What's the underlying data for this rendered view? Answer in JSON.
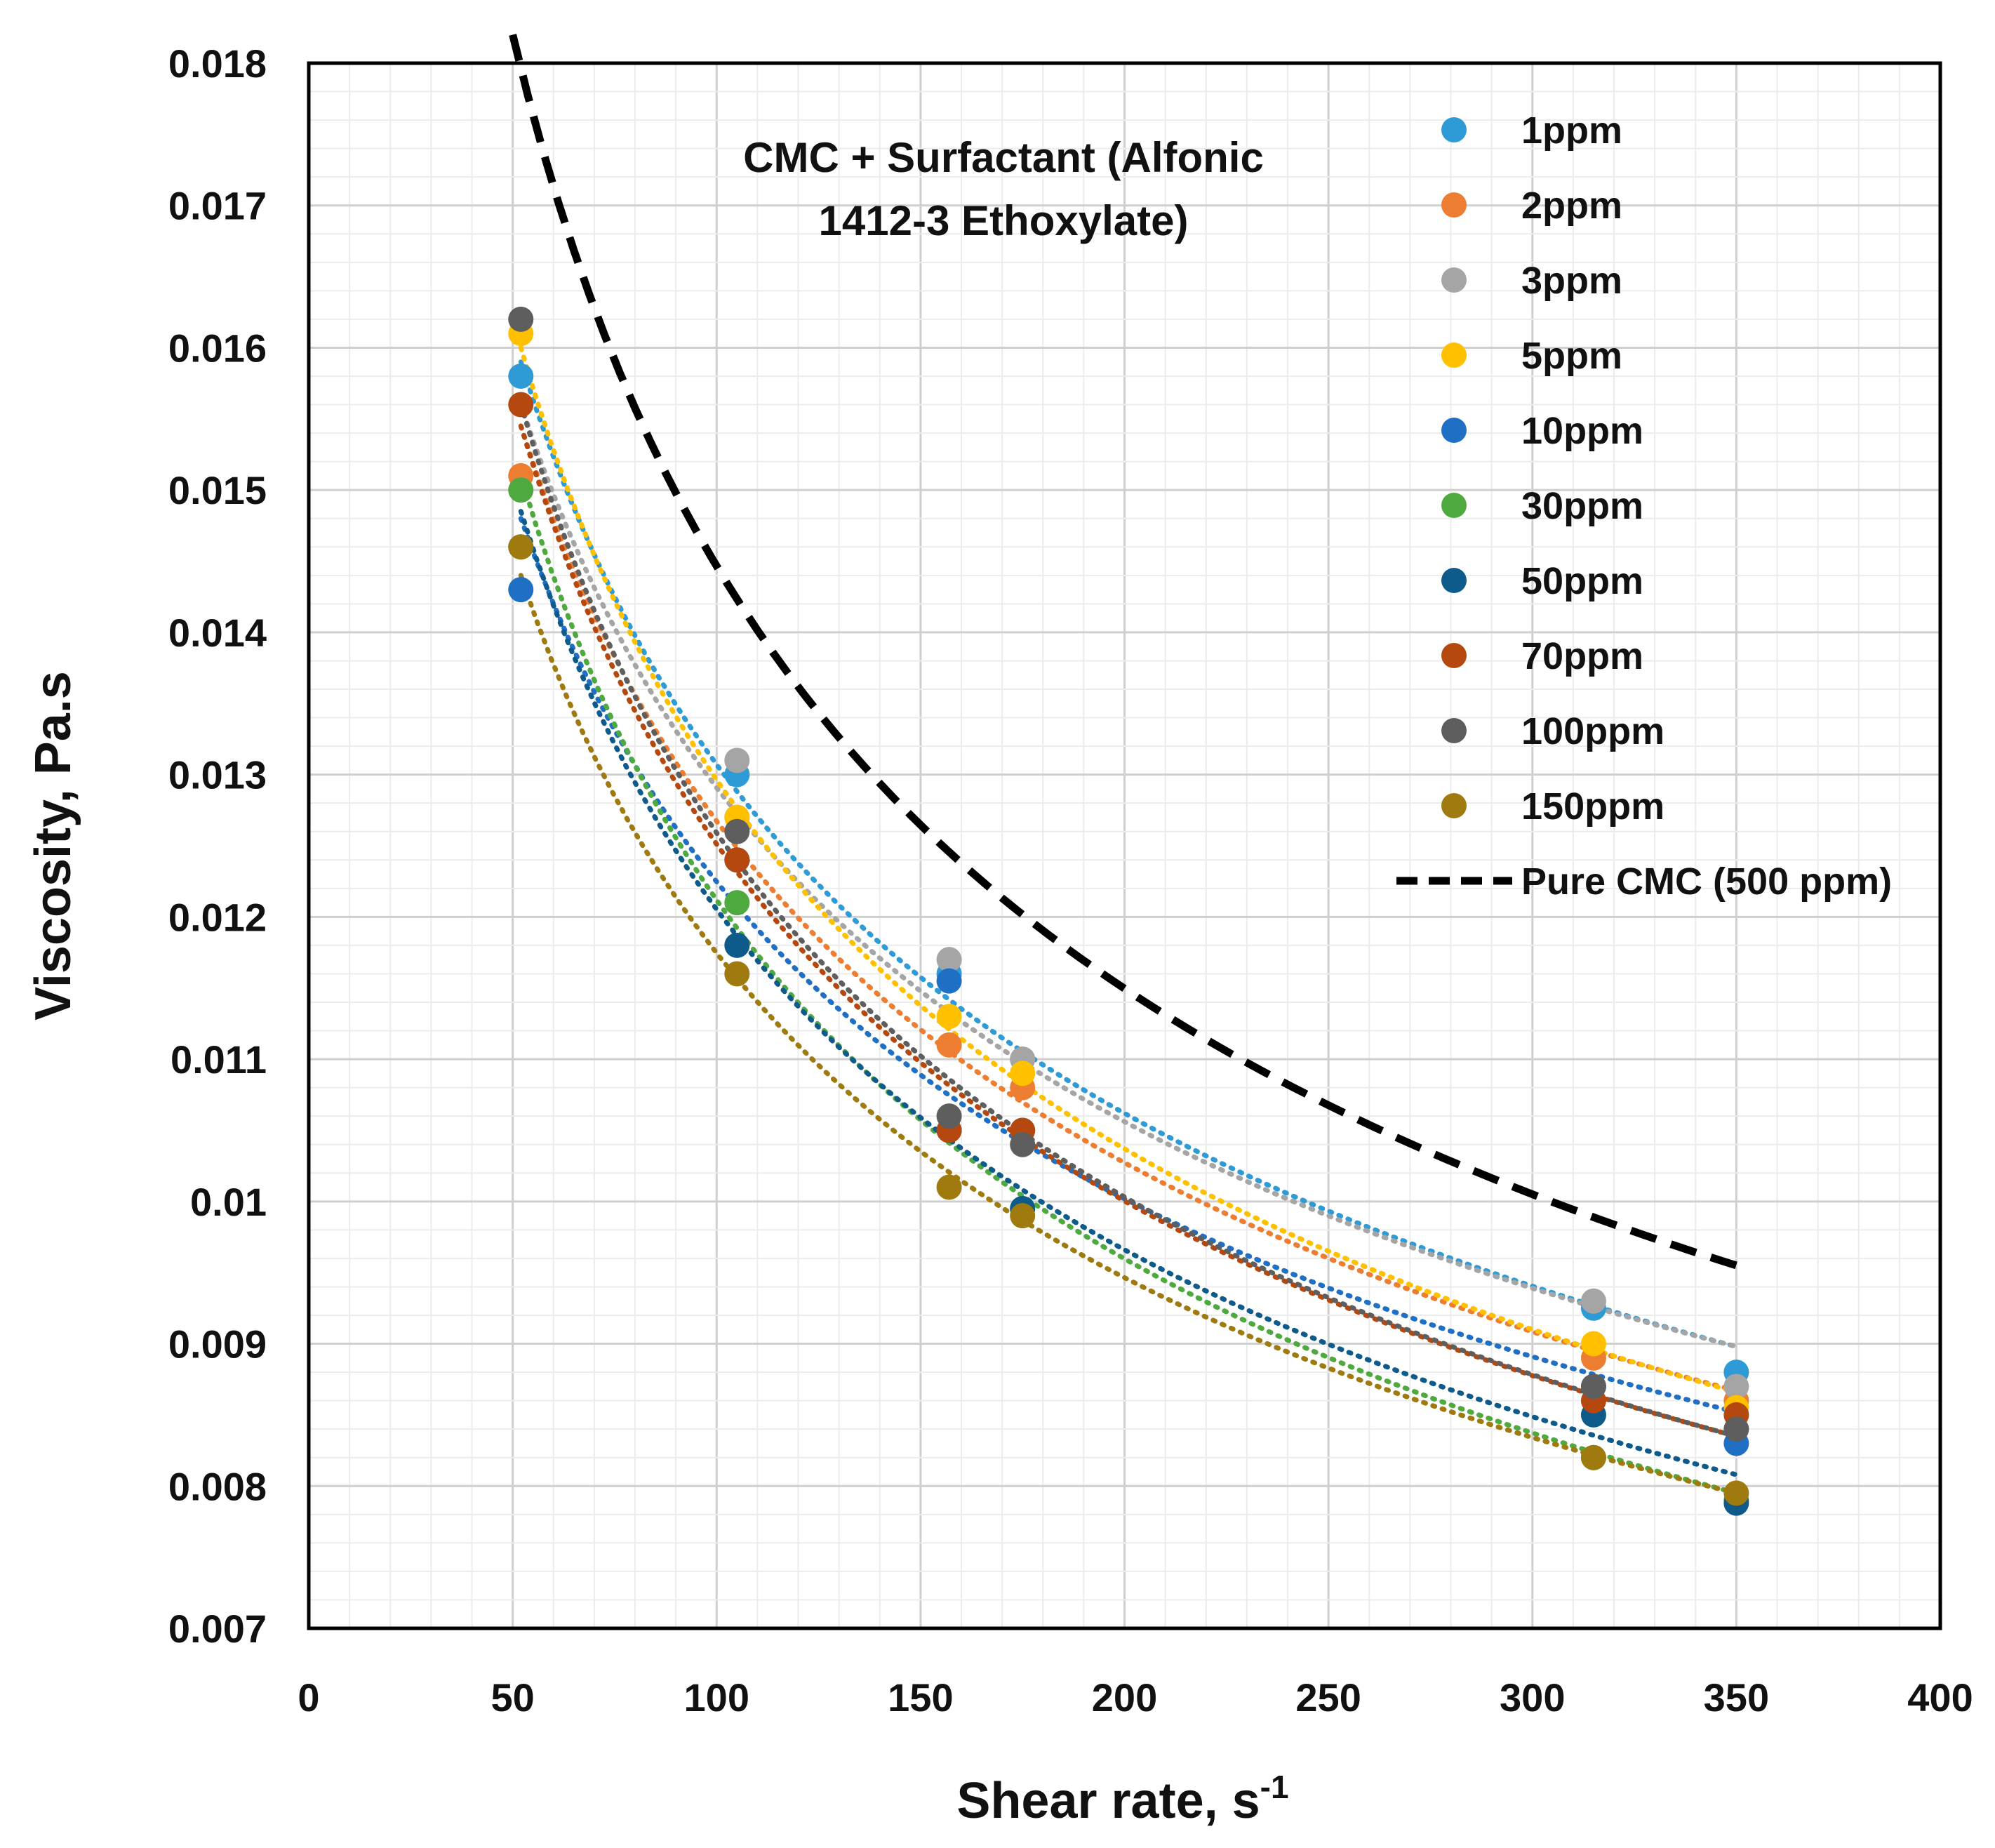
{
  "chart_data": {
    "type": "scatter",
    "title": "",
    "annotation_lines": [
      "CMC + Surfactant (Alfonic",
      "1412-3 Ethoxylate)"
    ],
    "xlabel": "Shear rate, s",
    "xlabel_superscript": "-1",
    "ylabel": "Viscosity, Pa.s",
    "xlim": [
      0,
      400
    ],
    "ylim": [
      0.007,
      0.018
    ],
    "x_ticks": [
      0,
      50,
      100,
      150,
      200,
      250,
      300,
      350,
      400
    ],
    "x_tick_labels": [
      "0",
      "50",
      "100",
      "150",
      "200",
      "250",
      "300",
      "350",
      "400"
    ],
    "y_ticks": [
      0.007,
      0.008,
      0.009,
      0.01,
      0.011,
      0.012,
      0.013,
      0.014,
      0.015,
      0.016,
      0.017,
      0.018
    ],
    "y_tick_labels": [
      "0.007",
      "0.008",
      "0.009",
      "0.01",
      "0.011",
      "0.012",
      "0.013",
      "0.014",
      "0.015",
      "0.016",
      "0.017",
      "0.018"
    ],
    "grid": true,
    "legend_position": "top-right",
    "series": [
      {
        "name": "1ppm",
        "color": "#2E9BD6",
        "x": [
          52,
          105,
          157,
          175,
          315,
          350
        ],
        "values": [
          0.0158,
          0.013,
          0.0116,
          0.011,
          0.00925,
          0.0088
        ],
        "trend": [
          0.0159,
          0.00898
        ]
      },
      {
        "name": "2ppm",
        "color": "#ED7D31",
        "x": [
          52,
          105,
          157,
          175,
          315,
          350
        ],
        "values": [
          0.0151,
          0.0127,
          0.0111,
          0.0108,
          0.0089,
          0.0086
        ],
        "trend": [
          0.01545,
          0.00867
        ]
      },
      {
        "name": "3ppm",
        "color": "#A5A5A5",
        "x": [
          52,
          105,
          157,
          175,
          315,
          350
        ],
        "values": [
          0.015,
          0.0131,
          0.0117,
          0.011,
          0.0093,
          0.0087
        ],
        "trend": [
          0.0156,
          0.00898
        ]
      },
      {
        "name": "5ppm",
        "color": "#FFC000",
        "x": [
          52,
          105,
          157,
          175,
          315,
          350
        ],
        "values": [
          0.0161,
          0.0127,
          0.0113,
          0.0109,
          0.009,
          0.00855
        ],
        "trend": [
          0.016,
          0.00866
        ]
      },
      {
        "name": "10ppm",
        "color": "#1F6FC5",
        "x": [
          52,
          105,
          157,
          175,
          315,
          350
        ],
        "values": [
          0.0143,
          0.0124,
          0.01155,
          0.0105,
          0.0087,
          0.0083
        ],
        "trend": [
          0.0148,
          0.00852
        ]
      },
      {
        "name": "30ppm",
        "color": "#4EAA3F",
        "x": [
          52,
          105,
          157,
          175,
          315,
          350
        ],
        "values": [
          0.015,
          0.0121,
          0.0105,
          0.00995,
          0.0082,
          0.0079
        ],
        "trend": [
          0.0151,
          0.00795
        ]
      },
      {
        "name": "50ppm",
        "color": "#0E5A8A",
        "x": [
          52,
          105,
          157,
          175,
          315,
          350
        ],
        "values": [
          0.0146,
          0.0118,
          0.0105,
          0.00995,
          0.0085,
          0.00788
        ],
        "trend": [
          0.01485,
          0.00808
        ]
      },
      {
        "name": "70ppm",
        "color": "#B5480E",
        "x": [
          52,
          105,
          157,
          175,
          315,
          350
        ],
        "values": [
          0.0156,
          0.0124,
          0.0105,
          0.0105,
          0.0086,
          0.0085
        ],
        "trend": [
          0.01545,
          0.00835
        ]
      },
      {
        "name": "100ppm",
        "color": "#5E5E5E",
        "x": [
          52,
          105,
          157,
          175,
          315,
          350
        ],
        "values": [
          0.0162,
          0.0126,
          0.0106,
          0.0104,
          0.0087,
          0.0084
        ],
        "trend": [
          0.0156,
          0.00835
        ]
      },
      {
        "name": "150ppm",
        "color": "#9E7A0F",
        "x": [
          52,
          105,
          157,
          175,
          315,
          350
        ],
        "values": [
          0.0146,
          0.0116,
          0.0101,
          0.0099,
          0.0082,
          0.00795
        ],
        "trend": [
          0.0144,
          0.00795
        ]
      }
    ],
    "reference_curve": {
      "name": "Pure CMC (500 ppm)",
      "color": "#000000",
      "style": "dashed",
      "x_range": [
        50,
        350
      ],
      "y_at_ends": [
        0.0182,
        0.00955
      ]
    }
  }
}
